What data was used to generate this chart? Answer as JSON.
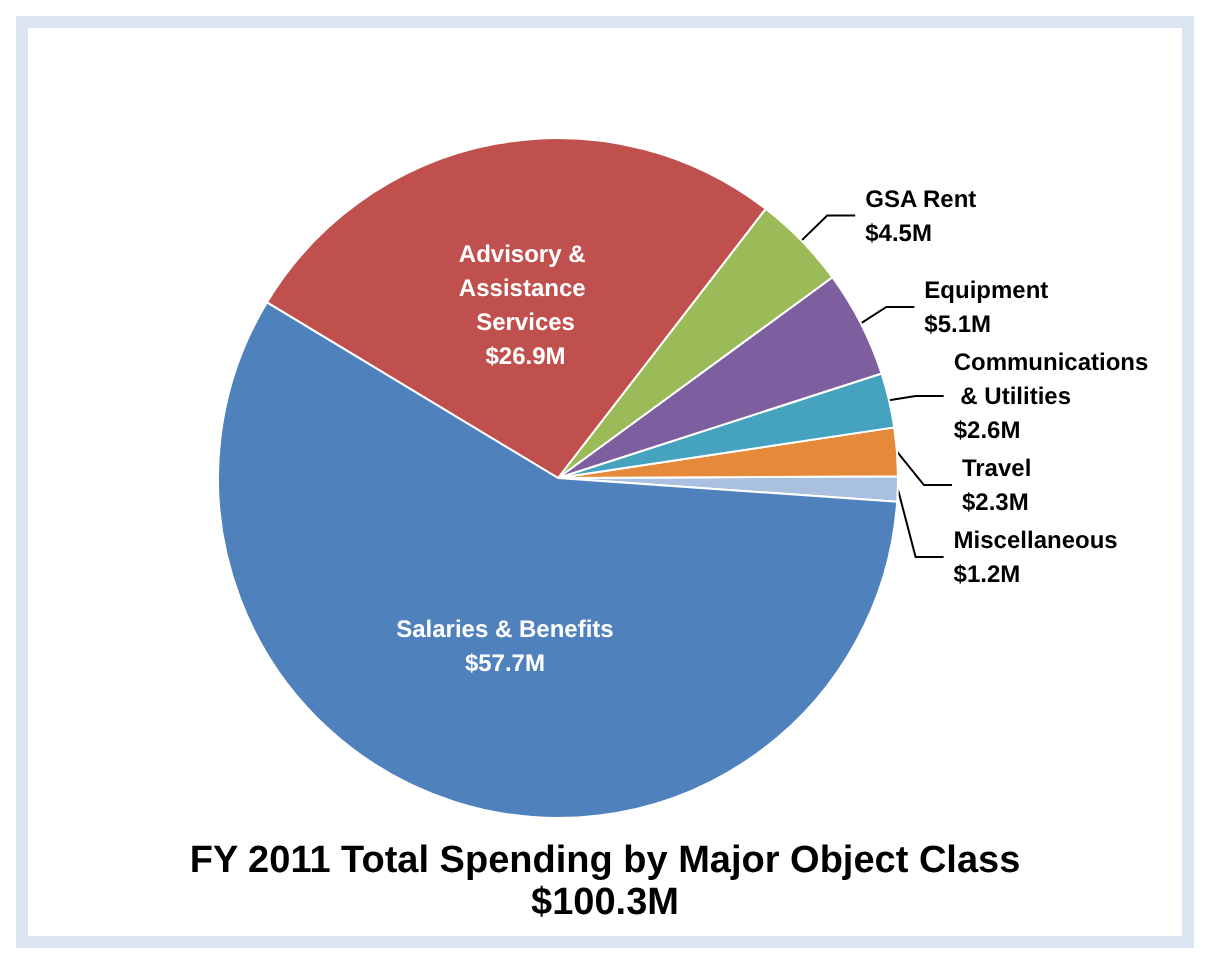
{
  "chart_data": {
    "type": "pie",
    "title": "FY 2011 Total Spending by Major Object Class",
    "subtitle": "$100.3M",
    "categories": [
      "Miscellaneous",
      "Travel",
      "Communications & Utilities",
      "Equipment",
      "GSA Rent",
      "Advisory & Assistance Services",
      "Salaries & Benefits"
    ],
    "values": [
      1.2,
      2.3,
      2.6,
      5.1,
      4.5,
      26.9,
      57.7
    ],
    "value_labels": [
      "$1.2M",
      "$2.3M",
      "$2.6M",
      "$5.1M",
      "$4.5M",
      "$26.9M",
      "$57.7M"
    ],
    "colors": [
      "#a9c0e0",
      "#e5893b",
      "#45a3c0",
      "#7d5fa0",
      "#9bbb59",
      "#c0504d",
      "#4f81bd"
    ],
    "legend": false
  }
}
